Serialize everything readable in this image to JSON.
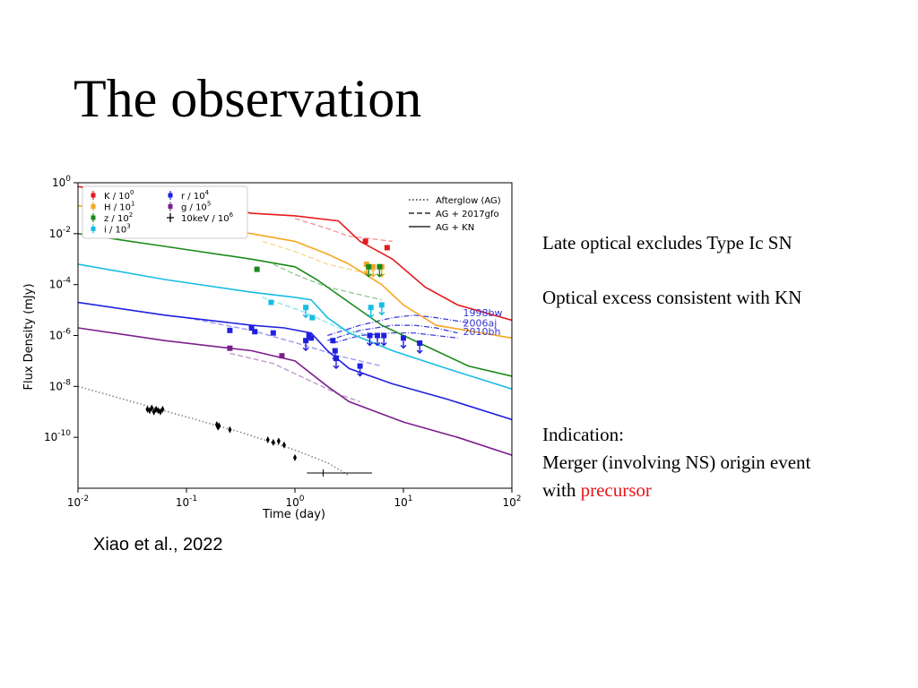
{
  "slide": {
    "title": "The observation",
    "notes": [
      "Late optical excludes Type Ic SN",
      "Optical excess consistent with KN"
    ],
    "indication_label": "Indication:",
    "indication_line": "Merger (involving NS) origin event",
    "with_word": "with",
    "precursor_word": "precursor",
    "citation": "Xiao et al., 2022"
  },
  "chart_data": {
    "type": "line",
    "xlabel": "Time (day)",
    "ylabel": "Flux Density (mJy)",
    "xscale": "log",
    "yscale": "log",
    "xlim": [
      0.01,
      100
    ],
    "ylim": [
      1e-12,
      1
    ],
    "x_ticks": [
      {
        "v": -2,
        "e": "-2"
      },
      {
        "v": -1,
        "e": "-1"
      },
      {
        "v": 0,
        "e": "0"
      },
      {
        "v": 1,
        "e": "1"
      },
      {
        "v": 2,
        "e": "2"
      }
    ],
    "y_ticks": [
      {
        "v": 0,
        "e": "0"
      },
      {
        "v": -2,
        "e": "-2"
      },
      {
        "v": -4,
        "e": "-4"
      },
      {
        "v": -6,
        "e": "-6"
      },
      {
        "v": -8,
        "e": "-8"
      },
      {
        "v": -10,
        "e": "-10"
      }
    ],
    "legend_left": [
      {
        "label": "K / 10",
        "exp": "0",
        "color": "#e41a1c",
        "marker": "errbar"
      },
      {
        "label": "H / 10",
        "exp": "1",
        "color": "#f5a623",
        "marker": "errbar"
      },
      {
        "label": "z / 10",
        "exp": "2",
        "color": "#1a8a1a",
        "marker": "errbar"
      },
      {
        "label": "i / 10",
        "exp": "3",
        "color": "#17bde3",
        "marker": "errbar"
      }
    ],
    "legend_mid": [
      {
        "label": "r / 10",
        "exp": "4",
        "color": "#1f1fe0",
        "marker": "errbar"
      },
      {
        "label": "g / 10",
        "exp": "5",
        "color": "#7b1f8c",
        "marker": "errbar"
      },
      {
        "label": "10keV / 10",
        "exp": "6",
        "color": "#000000",
        "marker": "cross"
      }
    ],
    "legend_styles": [
      {
        "label": "Afterglow (AG)",
        "dash": "dotted"
      },
      {
        "label": "AG + 2017gfo",
        "dash": "dashed"
      },
      {
        "label": "AG + KN",
        "dash": "solid"
      }
    ],
    "sn_labels": [
      "1998bw",
      "2006aj",
      "2010bh"
    ],
    "sn_label_color": "#3535d6",
    "series": [
      {
        "band": "K",
        "color": "#e41a1c",
        "kn": [
          [
            -2,
            -0.15
          ],
          [
            -1.2,
            -0.6
          ],
          [
            -0.4,
            -1.2
          ],
          [
            0.0,
            -1.3
          ],
          [
            0.4,
            -1.5
          ],
          [
            0.6,
            -2.3
          ],
          [
            0.9,
            -3.0
          ],
          [
            1.2,
            -4.1
          ],
          [
            1.5,
            -4.8
          ],
          [
            2,
            -5.4
          ]
        ],
        "gfo": [
          [
            0.0,
            -1.4
          ],
          [
            0.3,
            -1.8
          ],
          [
            0.5,
            -2.1
          ],
          [
            0.7,
            -2.2
          ],
          [
            0.9,
            -2.3
          ]
        ],
        "points": [
          {
            "x": 0.65,
            "y": -2.3
          },
          {
            "x": 0.85,
            "y": -2.55
          }
        ]
      },
      {
        "band": "H",
        "color": "#f5a623",
        "kn": [
          [
            -2,
            -0.9
          ],
          [
            -1.2,
            -1.5
          ],
          [
            -0.4,
            -2.0
          ],
          [
            0.0,
            -2.3
          ],
          [
            0.3,
            -2.8
          ],
          [
            0.5,
            -3.2
          ],
          [
            0.8,
            -4.0
          ],
          [
            1.0,
            -4.8
          ],
          [
            1.3,
            -5.6
          ],
          [
            2,
            -6.1
          ]
        ],
        "gfo": [
          [
            -0.3,
            -2.3
          ],
          [
            0.0,
            -2.7
          ],
          [
            0.3,
            -3.2
          ],
          [
            0.6,
            -3.5
          ],
          [
            0.8,
            -3.4
          ]
        ],
        "points": [
          {
            "x": 0.66,
            "y": -3.2,
            "ul": true
          },
          {
            "x": 0.72,
            "y": -3.3,
            "ul": true
          },
          {
            "x": 0.8,
            "y": -3.3,
            "ul": true
          }
        ]
      },
      {
        "band": "z",
        "color": "#1a8a1a",
        "kn": [
          [
            -2,
            -2.0
          ],
          [
            -1.2,
            -2.5
          ],
          [
            -0.4,
            -3.0
          ],
          [
            0.0,
            -3.3
          ],
          [
            0.2,
            -3.8
          ],
          [
            0.5,
            -4.7
          ],
          [
            0.8,
            -5.6
          ],
          [
            1.2,
            -6.4
          ],
          [
            1.6,
            -7.2
          ],
          [
            2,
            -7.6
          ]
        ],
        "gfo": [
          [
            -0.2,
            -3.2
          ],
          [
            0.0,
            -3.6
          ],
          [
            0.3,
            -4.1
          ],
          [
            0.6,
            -4.4
          ],
          [
            0.8,
            -4.6
          ]
        ],
        "points": [
          {
            "x": -0.35,
            "y": -3.4
          },
          {
            "x": 0.68,
            "y": -3.3,
            "ul": true
          },
          {
            "x": 0.78,
            "y": -3.3,
            "ul": true
          }
        ]
      },
      {
        "band": "i",
        "color": "#17bde3",
        "kn": [
          [
            -2,
            -3.2
          ],
          [
            -1.2,
            -3.8
          ],
          [
            -0.4,
            -4.3
          ],
          [
            0.0,
            -4.5
          ],
          [
            0.15,
            -4.6
          ],
          [
            0.3,
            -5.3
          ],
          [
            0.5,
            -5.9
          ],
          [
            0.9,
            -6.6
          ],
          [
            1.4,
            -7.3
          ],
          [
            2,
            -8.1
          ]
        ],
        "gfo": [
          [
            -0.3,
            -4.5
          ],
          [
            0.1,
            -5.1
          ],
          [
            0.4,
            -5.7
          ],
          [
            0.6,
            -5.9
          ],
          [
            0.8,
            -6.1
          ]
        ],
        "points": [
          {
            "x": -0.22,
            "y": -4.7
          },
          {
            "x": 0.1,
            "y": -4.9,
            "ul": true
          },
          {
            "x": 0.16,
            "y": -5.3
          },
          {
            "x": 0.7,
            "y": -4.9,
            "ul": true
          },
          {
            "x": 0.8,
            "y": -4.8,
            "ul": true
          }
        ]
      },
      {
        "band": "r",
        "color": "#1f1fe0",
        "kn": [
          [
            -2,
            -4.7
          ],
          [
            -1.2,
            -5.2
          ],
          [
            -0.4,
            -5.6
          ],
          [
            -0.1,
            -5.7
          ],
          [
            0.15,
            -5.9
          ],
          [
            0.3,
            -6.6
          ],
          [
            0.5,
            -7.3
          ],
          [
            0.9,
            -7.9
          ],
          [
            1.4,
            -8.5
          ],
          [
            2,
            -9.3
          ]
        ],
        "gfo": [
          [
            -1.0,
            -5.3
          ],
          [
            -0.4,
            -5.8
          ],
          [
            0.1,
            -6.4
          ],
          [
            0.4,
            -6.8
          ],
          [
            0.8,
            -7.2
          ]
        ],
        "points": [
          {
            "x": -0.6,
            "y": -5.8
          },
          {
            "x": -0.4,
            "y": -5.7
          },
          {
            "x": -0.37,
            "y": -5.85
          },
          {
            "x": -0.2,
            "y": -5.9
          },
          {
            "x": 0.1,
            "y": -6.2,
            "ul": true
          },
          {
            "x": 0.13,
            "y": -6.0
          },
          {
            "x": 0.15,
            "y": -6.1
          },
          {
            "x": 0.35,
            "y": -6.2
          },
          {
            "x": 0.37,
            "y": -6.6,
            "ul": true
          },
          {
            "x": 0.38,
            "y": -6.9,
            "ul": true
          },
          {
            "x": 0.6,
            "y": -7.2,
            "ul": true
          },
          {
            "x": 0.69,
            "y": -6.0,
            "ul": true
          },
          {
            "x": 0.76,
            "y": -6.0,
            "ul": true
          },
          {
            "x": 0.82,
            "y": -6.0,
            "ul": true
          },
          {
            "x": 1.0,
            "y": -6.1,
            "ul": true
          },
          {
            "x": 1.15,
            "y": -6.3,
            "ul": true
          }
        ]
      },
      {
        "band": "g",
        "color": "#7b1f8c",
        "kn": [
          [
            -2,
            -5.7
          ],
          [
            -1.2,
            -6.2
          ],
          [
            -0.4,
            -6.6
          ],
          [
            0.0,
            -7.0
          ],
          [
            0.3,
            -8.0
          ],
          [
            0.5,
            -8.6
          ],
          [
            1.0,
            -9.4
          ],
          [
            1.5,
            -10.0
          ],
          [
            2,
            -10.7
          ]
        ],
        "gfo": [
          [
            -0.6,
            -6.7
          ],
          [
            -0.2,
            -7.1
          ],
          [
            0.1,
            -7.7
          ],
          [
            0.4,
            -8.3
          ],
          [
            0.6,
            -8.6
          ]
        ],
        "points": [
          {
            "x": -0.6,
            "y": -6.5
          },
          {
            "x": -0.12,
            "y": -6.8
          }
        ]
      },
      {
        "band": "X",
        "color": "#000000",
        "ag": [
          [
            -2,
            -8.0
          ],
          [
            -1.5,
            -8.6
          ],
          [
            -1.0,
            -9.2
          ],
          [
            -0.5,
            -9.8
          ],
          [
            0.0,
            -10.5
          ],
          [
            0.3,
            -11.0
          ],
          [
            0.5,
            -11.5
          ]
        ],
        "points": [
          {
            "x": -1.36,
            "y": -8.9
          },
          {
            "x": -1.34,
            "y": -8.95
          },
          {
            "x": -1.32,
            "y": -8.85
          },
          {
            "x": -1.3,
            "y": -9.0
          },
          {
            "x": -1.28,
            "y": -8.9
          },
          {
            "x": -1.26,
            "y": -8.95
          },
          {
            "x": -1.24,
            "y": -9.0
          },
          {
            "x": -1.22,
            "y": -8.9
          },
          {
            "x": -0.72,
            "y": -9.5
          },
          {
            "x": -0.71,
            "y": -9.6
          },
          {
            "x": -0.7,
            "y": -9.55
          },
          {
            "x": -0.6,
            "y": -9.7
          },
          {
            "x": -0.25,
            "y": -10.1
          },
          {
            "x": -0.2,
            "y": -10.2
          },
          {
            "x": -0.15,
            "y": -10.15
          },
          {
            "x": -0.1,
            "y": -10.3
          },
          {
            "x": 0.0,
            "y": -10.8
          },
          {
            "x": 0.26,
            "y": -11.4,
            "xerr": [
              0.15,
              0.45
            ]
          }
        ]
      }
    ],
    "sn_curves": [
      [
        [
          0.3,
          -6.0
        ],
        [
          0.6,
          -5.6
        ],
        [
          0.9,
          -5.3
        ],
        [
          1.1,
          -5.2
        ],
        [
          1.3,
          -5.3
        ],
        [
          1.6,
          -5.5
        ]
      ],
      [
        [
          0.3,
          -6.2
        ],
        [
          0.6,
          -5.8
        ],
        [
          0.9,
          -5.6
        ],
        [
          1.1,
          -5.6
        ],
        [
          1.3,
          -5.7
        ],
        [
          1.5,
          -5.9
        ]
      ],
      [
        [
          0.35,
          -6.3
        ],
        [
          0.6,
          -6.0
        ],
        [
          0.9,
          -5.9
        ],
        [
          1.1,
          -5.9
        ],
        [
          1.3,
          -6.0
        ],
        [
          1.5,
          -6.1
        ]
      ]
    ]
  }
}
